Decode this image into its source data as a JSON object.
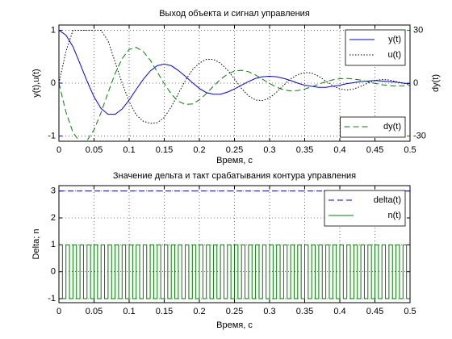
{
  "chart_data": [
    {
      "type": "line",
      "title": "Выход объекта и сигнал управления",
      "xlabel": "Время, с",
      "ylabel": "y(t),u(t)",
      "y2label": "dy(t)",
      "ycolor": "#0000ff",
      "y2color": "#008000",
      "xlim": [
        0,
        0.5
      ],
      "xticks": [
        0,
        0.05,
        0.1,
        0.15,
        0.2,
        0.25,
        0.3,
        0.35,
        0.4,
        0.45,
        0.5
      ],
      "ylim": [
        -1.1,
        1.1
      ],
      "yticks": [
        -1,
        0,
        1
      ],
      "y2lim": [
        -33,
        33
      ],
      "y2ticks": [
        -30,
        0,
        30
      ],
      "grid": true,
      "legend": "upper right",
      "legend_y2": "lower right",
      "x": [
        0,
        0.01,
        0.02,
        0.03,
        0.04,
        0.05,
        0.06,
        0.07,
        0.08,
        0.09,
        0.1,
        0.11,
        0.12,
        0.13,
        0.14,
        0.15,
        0.16,
        0.17,
        0.18,
        0.19,
        0.2,
        0.21,
        0.22,
        0.23,
        0.24,
        0.25,
        0.26,
        0.27,
        0.28,
        0.29,
        0.3,
        0.31,
        0.32,
        0.33,
        0.34,
        0.35,
        0.36,
        0.37,
        0.38,
        0.39,
        0.4,
        0.41,
        0.42,
        0.43,
        0.44,
        0.45,
        0.46,
        0.47,
        0.48,
        0.49,
        0.5
      ],
      "series": [
        {
          "name": "y(t)",
          "color": "#0000ff",
          "style": "solid",
          "values": [
            1,
            0.91,
            0.69,
            0.37,
            0.04,
            -0.26,
            -0.48,
            -0.59,
            -0.59,
            -0.49,
            -0.32,
            -0.12,
            0.07,
            0.23,
            0.33,
            0.36,
            0.33,
            0.24,
            0.13,
            0.01,
            -0.1,
            -0.18,
            -0.21,
            -0.21,
            -0.17,
            -0.11,
            -0.04,
            0.03,
            0.09,
            0.12,
            0.13,
            0.12,
            0.09,
            0.05,
            0,
            -0.04,
            -0.06,
            -0.08,
            -0.08,
            -0.06,
            -0.04,
            -0.01,
            0.01,
            0.03,
            0.04,
            0.05,
            0.04,
            0.03,
            0.02,
            0,
            -0.01
          ]
        },
        {
          "name": "u(t)",
          "color": "#000000",
          "style": "dotted",
          "values": [
            0,
            0.6,
            1,
            1,
            1,
            1,
            1,
            0.8,
            0.4,
            0,
            -0.35,
            -0.6,
            -0.72,
            -0.76,
            -0.75,
            -0.65,
            -0.45,
            -0.2,
            0.05,
            0.25,
            0.38,
            0.45,
            0.45,
            0.38,
            0.25,
            0.08,
            -0.1,
            -0.24,
            -0.32,
            -0.33,
            -0.28,
            -0.17,
            -0.04,
            0.08,
            0.16,
            0.2,
            0.19,
            0.13,
            0.04,
            -0.05,
            -0.11,
            -0.13,
            -0.11,
            -0.06,
            0,
            0.05,
            0.07,
            0.06,
            0.03,
            0,
            -0.03
          ]
        },
        {
          "name": "dy(t)",
          "color": "#008000",
          "style": "dashed",
          "axis": "y2",
          "values": [
            0,
            -16.4,
            -28,
            -33.4,
            -32.6,
            -26.5,
            -16.7,
            -5.4,
            5.4,
            13.9,
            19.1,
            20.3,
            18,
            13.1,
            6.4,
            -0.3,
            -6.2,
            -10.3,
            -12.1,
            -11.8,
            -9.5,
            -5.9,
            -1.7,
            2.1,
            5.1,
            6.9,
            7.3,
            6.5,
            4.6,
            2.2,
            -0.2,
            -2.3,
            -3.8,
            -4.4,
            -4.2,
            -3.4,
            -2,
            -0.6,
            0.8,
            1.9,
            2.5,
            2.7,
            2.3,
            1.7,
            0.8,
            -0.1,
            -0.9,
            -1.4,
            -1.6,
            -1.5,
            -1.2
          ]
        }
      ]
    },
    {
      "type": "line",
      "title": "Значение дельта и такт срабатывания контура управления",
      "xlabel": "Время, с",
      "ylabel": "Delta; n",
      "xlim": [
        0,
        0.5
      ],
      "xticks": [
        0,
        0.05,
        0.1,
        0.15,
        0.2,
        0.25,
        0.3,
        0.35,
        0.4,
        0.45,
        0.5
      ],
      "ylim": [
        -1.15,
        3.2
      ],
      "yticks": [
        -1,
        0,
        1,
        2,
        3
      ],
      "grid": true,
      "legend": "upper right",
      "series": [
        {
          "name": "delta(t)",
          "color": "#0000ff",
          "style": "dashed",
          "x": [
            0,
            0.5
          ],
          "values": [
            3,
            3
          ]
        },
        {
          "name": "n(t)",
          "color": "#008000",
          "style": "solid",
          "drawstyle": "steps",
          "x": [
            0,
            0.005,
            0.01,
            0.015,
            0.02,
            0.025,
            0.03,
            0.035,
            0.04,
            0.045,
            0.05,
            0.055,
            0.06,
            0.065,
            0.07,
            0.075,
            0.08,
            0.085,
            0.09,
            0.095,
            0.1,
            0.105,
            0.11,
            0.115,
            0.12,
            0.125,
            0.13,
            0.135,
            0.14,
            0.145,
            0.15,
            0.155,
            0.16,
            0.165,
            0.17,
            0.175,
            0.18,
            0.185,
            0.19,
            0.195,
            0.2,
            0.205,
            0.21,
            0.215,
            0.22,
            0.225,
            0.23,
            0.235,
            0.24,
            0.245,
            0.25,
            0.255,
            0.26,
            0.265,
            0.27,
            0.275,
            0.28,
            0.285,
            0.29,
            0.295,
            0.3,
            0.305,
            0.31,
            0.315,
            0.32,
            0.325,
            0.33,
            0.335,
            0.34,
            0.345,
            0.35,
            0.355,
            0.36,
            0.365,
            0.37,
            0.375,
            0.38,
            0.385,
            0.39,
            0.395,
            0.4,
            0.405,
            0.41,
            0.415,
            0.42,
            0.425,
            0.43,
            0.435,
            0.44,
            0.445,
            0.45,
            0.455,
            0.46,
            0.465,
            0.47,
            0.475,
            0.48,
            0.485,
            0.49,
            0.495,
            0.5
          ],
          "values": [
            1,
            -1,
            1,
            -1,
            1,
            -1,
            1,
            -1,
            1,
            -1,
            1,
            -1,
            1,
            -1,
            1,
            -1,
            1,
            -1,
            1,
            -1,
            1,
            -1,
            1,
            -1,
            1,
            -1,
            1,
            -1,
            1,
            -1,
            1,
            -1,
            1,
            -1,
            1,
            -1,
            1,
            -1,
            1,
            -1,
            1,
            -1,
            1,
            -1,
            1,
            -1,
            1,
            -1,
            1,
            -1,
            1,
            -1,
            1,
            -1,
            1,
            -1,
            1,
            -1,
            1,
            -1,
            1,
            -1,
            1,
            -1,
            1,
            -1,
            1,
            -1,
            1,
            -1,
            1,
            -1,
            1,
            -1,
            1,
            -1,
            1,
            -1,
            1,
            -1,
            1,
            -1,
            1,
            -1,
            1,
            -1,
            1,
            -1,
            1,
            -1,
            1,
            -1,
            1,
            -1,
            1,
            -1,
            1,
            -1,
            1,
            -1,
            1
          ]
        }
      ]
    }
  ]
}
